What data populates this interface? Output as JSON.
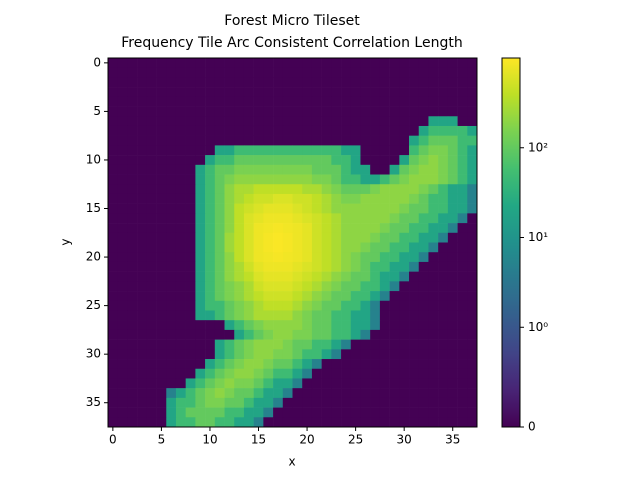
{
  "chart_data": {
    "type": "heatmap",
    "title": "Forest Micro Tileset",
    "subtitle": "Frequency Tile Arc Consistent Correlation Length",
    "x_label": "x",
    "y_label": "y",
    "xlim": [
      -0.5,
      37.5
    ],
    "ylim": [
      37.5,
      -0.5
    ],
    "xticks": [
      0,
      5,
      10,
      15,
      20,
      25,
      30,
      35
    ],
    "yticks": [
      0,
      5,
      10,
      15,
      20,
      25,
      30,
      35
    ],
    "colormap": "viridis",
    "norm": "symlog",
    "linthresh": 1,
    "clim": [
      0,
      1000
    ],
    "cticks": [
      0,
      {
        "value": 1,
        "label": "10⁰"
      },
      {
        "value": 10,
        "label": "10¹"
      },
      {
        "value": 100,
        "label": "10²"
      }
    ],
    "z": [
      [
        0,
        0,
        0,
        0,
        0,
        0,
        0,
        0,
        0,
        0,
        0,
        0,
        0,
        0,
        0,
        0,
        0,
        0,
        0,
        0,
        0,
        0,
        0,
        0,
        0,
        0,
        0,
        0,
        0,
        0,
        0,
        0,
        0,
        0,
        0,
        0,
        0,
        0
      ],
      [
        0,
        0,
        0,
        0,
        0,
        0,
        0,
        0,
        0,
        0,
        0,
        0,
        0,
        0,
        0,
        0,
        0,
        0,
        0,
        0,
        0,
        0,
        0,
        0,
        0,
        0,
        0,
        0,
        0,
        0,
        0,
        0,
        0,
        0,
        0,
        0,
        0,
        0
      ],
      [
        0,
        0,
        0,
        0,
        0,
        0,
        0,
        0,
        0,
        0,
        0,
        0,
        0,
        0,
        0,
        0,
        0,
        0,
        0,
        0,
        0,
        0,
        0,
        0,
        0,
        0,
        0,
        0,
        0,
        0,
        0,
        0,
        0,
        0,
        0,
        0,
        0,
        0
      ],
      [
        0,
        0,
        0,
        0,
        0,
        0,
        0,
        0,
        0,
        0,
        0,
        0,
        0,
        0,
        0,
        0,
        0,
        0,
        0,
        0,
        0,
        0,
        0,
        0,
        0,
        0,
        0,
        0,
        0,
        0,
        0,
        0,
        0,
        0,
        0,
        0,
        0,
        0
      ],
      [
        0,
        0,
        0,
        0,
        0,
        0,
        0,
        0,
        0,
        0,
        0,
        0,
        0,
        0,
        0,
        0,
        0,
        0,
        0,
        0,
        0,
        0,
        0,
        0,
        0,
        0,
        0,
        0,
        0,
        0,
        0,
        0,
        0,
        0,
        0,
        0,
        0,
        0
      ],
      [
        0,
        0,
        0,
        0,
        0,
        0,
        0,
        0,
        0,
        0,
        0,
        0,
        0,
        0,
        0,
        0,
        0,
        0,
        0,
        0,
        0,
        0,
        0,
        0,
        0,
        0,
        0,
        0,
        0,
        0,
        0,
        0,
        0,
        0,
        0,
        0,
        0,
        0
      ],
      [
        0,
        0,
        0,
        0,
        0,
        0,
        0,
        0,
        0,
        0,
        0,
        0,
        0,
        0,
        0,
        0,
        0,
        0,
        0,
        0,
        0,
        0,
        0,
        0,
        0,
        0,
        0,
        0,
        0,
        0,
        0,
        0,
        0,
        20,
        20,
        20,
        0,
        0
      ],
      [
        0,
        0,
        0,
        0,
        0,
        0,
        0,
        0,
        0,
        0,
        0,
        0,
        0,
        0,
        0,
        0,
        0,
        0,
        0,
        0,
        0,
        0,
        0,
        0,
        0,
        0,
        0,
        0,
        0,
        0,
        0,
        0,
        20,
        50,
        50,
        50,
        50,
        20
      ],
      [
        0,
        0,
        0,
        0,
        0,
        0,
        0,
        0,
        0,
        0,
        0,
        0,
        0,
        0,
        0,
        0,
        0,
        0,
        0,
        0,
        0,
        0,
        0,
        0,
        0,
        0,
        0,
        0,
        0,
        0,
        0,
        20,
        50,
        100,
        100,
        100,
        50,
        50
      ],
      [
        0,
        0,
        0,
        0,
        0,
        0,
        0,
        0,
        0,
        0,
        0,
        20,
        20,
        50,
        50,
        50,
        50,
        50,
        50,
        50,
        50,
        50,
        50,
        50,
        20,
        20,
        0,
        0,
        0,
        0,
        0,
        50,
        100,
        150,
        150,
        100,
        50,
        20
      ],
      [
        0,
        0,
        0,
        0,
        0,
        0,
        0,
        0,
        0,
        0,
        20,
        50,
        50,
        100,
        100,
        100,
        100,
        100,
        100,
        100,
        100,
        100,
        100,
        50,
        50,
        20,
        0,
        0,
        0,
        0,
        20,
        100,
        150,
        200,
        150,
        100,
        50,
        20
      ],
      [
        0,
        0,
        0,
        0,
        0,
        0,
        0,
        0,
        0,
        20,
        50,
        100,
        100,
        150,
        150,
        150,
        150,
        150,
        150,
        150,
        150,
        100,
        100,
        100,
        50,
        20,
        20,
        0,
        0,
        20,
        100,
        150,
        200,
        200,
        150,
        100,
        50,
        20
      ],
      [
        0,
        0,
        0,
        0,
        0,
        0,
        0,
        0,
        0,
        20,
        50,
        100,
        150,
        200,
        200,
        200,
        200,
        200,
        200,
        200,
        200,
        150,
        150,
        100,
        50,
        50,
        20,
        20,
        50,
        100,
        150,
        200,
        200,
        200,
        150,
        100,
        50,
        20
      ],
      [
        0,
        0,
        0,
        0,
        0,
        0,
        0,
        0,
        0,
        20,
        50,
        100,
        200,
        300,
        300,
        400,
        400,
        400,
        400,
        400,
        300,
        300,
        200,
        150,
        100,
        100,
        100,
        150,
        200,
        200,
        200,
        200,
        150,
        100,
        50,
        20,
        20,
        5
      ],
      [
        0,
        0,
        0,
        0,
        0,
        0,
        0,
        0,
        0,
        20,
        50,
        100,
        200,
        300,
        400,
        500,
        500,
        600,
        600,
        500,
        500,
        400,
        300,
        200,
        150,
        150,
        200,
        200,
        200,
        200,
        200,
        150,
        100,
        50,
        50,
        20,
        20,
        5
      ],
      [
        0,
        0,
        0,
        0,
        0,
        0,
        0,
        0,
        0,
        20,
        50,
        100,
        200,
        400,
        500,
        600,
        700,
        700,
        700,
        600,
        500,
        400,
        300,
        200,
        200,
        200,
        200,
        200,
        200,
        200,
        150,
        100,
        100,
        50,
        50,
        20,
        20,
        5
      ],
      [
        0,
        0,
        0,
        0,
        0,
        0,
        0,
        0,
        0,
        20,
        50,
        100,
        200,
        400,
        600,
        700,
        800,
        800,
        800,
        700,
        600,
        500,
        400,
        300,
        200,
        200,
        200,
        200,
        200,
        150,
        100,
        100,
        50,
        50,
        20,
        20,
        5,
        0
      ],
      [
        0,
        0,
        0,
        0,
        0,
        0,
        0,
        0,
        0,
        20,
        50,
        100,
        200,
        400,
        600,
        800,
        850,
        900,
        850,
        800,
        700,
        500,
        400,
        300,
        200,
        200,
        200,
        200,
        150,
        100,
        100,
        50,
        50,
        20,
        20,
        5,
        0,
        0
      ],
      [
        0,
        0,
        0,
        0,
        0,
        0,
        0,
        0,
        0,
        20,
        50,
        100,
        250,
        400,
        600,
        800,
        900,
        950,
        900,
        800,
        700,
        500,
        400,
        300,
        200,
        200,
        200,
        150,
        100,
        100,
        50,
        50,
        20,
        20,
        5,
        0,
        0,
        0
      ],
      [
        0,
        0,
        0,
        0,
        0,
        0,
        0,
        0,
        0,
        20,
        50,
        100,
        250,
        400,
        600,
        800,
        900,
        950,
        900,
        800,
        700,
        500,
        400,
        300,
        200,
        200,
        150,
        100,
        100,
        50,
        50,
        20,
        20,
        5,
        0,
        0,
        0,
        0
      ],
      [
        0,
        0,
        0,
        0,
        0,
        0,
        0,
        0,
        0,
        20,
        50,
        100,
        200,
        400,
        600,
        800,
        850,
        900,
        850,
        800,
        700,
        500,
        400,
        300,
        200,
        150,
        100,
        100,
        50,
        50,
        20,
        20,
        5,
        0,
        0,
        0,
        0,
        0
      ],
      [
        0,
        0,
        0,
        0,
        0,
        0,
        0,
        0,
        0,
        20,
        50,
        100,
        200,
        300,
        500,
        700,
        800,
        800,
        800,
        700,
        600,
        500,
        400,
        300,
        200,
        150,
        100,
        50,
        50,
        20,
        20,
        5,
        0,
        0,
        0,
        0,
        0,
        0
      ],
      [
        0,
        0,
        0,
        0,
        0,
        0,
        0,
        0,
        0,
        20,
        50,
        100,
        200,
        300,
        400,
        600,
        700,
        700,
        700,
        600,
        500,
        400,
        300,
        200,
        150,
        100,
        100,
        50,
        20,
        20,
        5,
        0,
        0,
        0,
        0,
        0,
        0,
        0
      ],
      [
        0,
        0,
        0,
        0,
        0,
        0,
        0,
        0,
        0,
        20,
        50,
        100,
        150,
        200,
        300,
        500,
        600,
        600,
        600,
        500,
        400,
        300,
        200,
        150,
        100,
        100,
        50,
        50,
        20,
        5,
        0,
        0,
        0,
        0,
        0,
        0,
        0,
        0
      ],
      [
        0,
        0,
        0,
        0,
        0,
        0,
        0,
        0,
        0,
        20,
        50,
        100,
        150,
        200,
        300,
        400,
        500,
        500,
        500,
        400,
        300,
        200,
        150,
        100,
        100,
        50,
        50,
        20,
        5,
        0,
        0,
        0,
        0,
        0,
        0,
        0,
        0,
        0
      ],
      [
        0,
        0,
        0,
        0,
        0,
        0,
        0,
        0,
        0,
        20,
        50,
        50,
        100,
        150,
        200,
        300,
        400,
        400,
        400,
        300,
        200,
        150,
        100,
        100,
        50,
        50,
        20,
        5,
        0,
        0,
        0,
        0,
        0,
        0,
        0,
        0,
        0,
        0
      ],
      [
        0,
        0,
        0,
        0,
        0,
        0,
        0,
        0,
        0,
        20,
        20,
        50,
        100,
        150,
        200,
        300,
        300,
        300,
        300,
        200,
        150,
        100,
        100,
        50,
        50,
        20,
        20,
        5,
        0,
        0,
        0,
        0,
        0,
        0,
        0,
        0,
        0,
        0
      ],
      [
        0,
        0,
        0,
        0,
        0,
        0,
        0,
        0,
        0,
        0,
        0,
        0,
        20,
        50,
        100,
        150,
        200,
        200,
        200,
        200,
        150,
        100,
        100,
        50,
        50,
        20,
        20,
        5,
        0,
        0,
        0,
        0,
        0,
        0,
        0,
        0,
        0,
        0
      ],
      [
        0,
        0,
        0,
        0,
        0,
        0,
        0,
        0,
        0,
        0,
        0,
        0,
        0,
        20,
        50,
        100,
        150,
        200,
        200,
        150,
        150,
        100,
        100,
        50,
        50,
        20,
        5,
        0,
        0,
        0,
        0,
        0,
        0,
        0,
        0,
        0,
        0,
        0
      ],
      [
        0,
        0,
        0,
        0,
        0,
        0,
        0,
        0,
        0,
        0,
        0,
        20,
        50,
        100,
        150,
        200,
        200,
        200,
        150,
        100,
        100,
        50,
        50,
        20,
        5,
        0,
        0,
        0,
        0,
        0,
        0,
        0,
        0,
        0,
        0,
        0,
        0,
        0
      ],
      [
        0,
        0,
        0,
        0,
        0,
        0,
        0,
        0,
        0,
        0,
        0,
        20,
        50,
        100,
        150,
        200,
        200,
        150,
        150,
        100,
        50,
        50,
        20,
        5,
        0,
        0,
        0,
        0,
        0,
        0,
        0,
        0,
        0,
        0,
        0,
        0,
        0,
        0
      ],
      [
        0,
        0,
        0,
        0,
        0,
        0,
        0,
        0,
        0,
        0,
        20,
        50,
        100,
        150,
        200,
        200,
        150,
        100,
        100,
        50,
        20,
        5,
        0,
        0,
        0,
        0,
        0,
        0,
        0,
        0,
        0,
        0,
        0,
        0,
        0,
        0,
        0,
        0
      ],
      [
        0,
        0,
        0,
        0,
        0,
        0,
        0,
        0,
        0,
        20,
        50,
        100,
        150,
        200,
        200,
        150,
        100,
        50,
        50,
        20,
        5,
        0,
        0,
        0,
        0,
        0,
        0,
        0,
        0,
        0,
        0,
        0,
        0,
        0,
        0,
        0,
        0,
        0
      ],
      [
        0,
        0,
        0,
        0,
        0,
        0,
        0,
        0,
        20,
        50,
        100,
        150,
        200,
        150,
        150,
        100,
        50,
        20,
        20,
        5,
        0,
        0,
        0,
        0,
        0,
        0,
        0,
        0,
        0,
        0,
        0,
        0,
        0,
        0,
        0,
        0,
        0,
        0
      ],
      [
        0,
        0,
        0,
        0,
        0,
        0,
        5,
        20,
        50,
        100,
        150,
        200,
        150,
        100,
        100,
        50,
        20,
        20,
        5,
        0,
        0,
        0,
        0,
        0,
        0,
        0,
        0,
        0,
        0,
        0,
        0,
        0,
        0,
        0,
        0,
        0,
        0,
        0
      ],
      [
        0,
        0,
        0,
        0,
        0,
        0,
        20,
        50,
        50,
        100,
        150,
        150,
        100,
        100,
        50,
        20,
        20,
        5,
        0,
        0,
        0,
        0,
        0,
        0,
        0,
        0,
        0,
        0,
        0,
        0,
        0,
        0,
        0,
        0,
        0,
        0,
        0,
        0
      ],
      [
        0,
        0,
        0,
        0,
        0,
        0,
        20,
        50,
        100,
        100,
        100,
        100,
        50,
        50,
        20,
        20,
        5,
        0,
        0,
        0,
        0,
        0,
        0,
        0,
        0,
        0,
        0,
        0,
        0,
        0,
        0,
        0,
        0,
        0,
        0,
        0,
        0,
        0
      ],
      [
        0,
        0,
        0,
        0,
        0,
        0,
        20,
        50,
        50,
        100,
        100,
        50,
        50,
        20,
        20,
        5,
        0,
        0,
        0,
        0,
        0,
        0,
        0,
        0,
        0,
        0,
        0,
        0,
        0,
        0,
        0,
        0,
        0,
        0,
        0,
        0,
        0,
        0
      ]
    ]
  }
}
